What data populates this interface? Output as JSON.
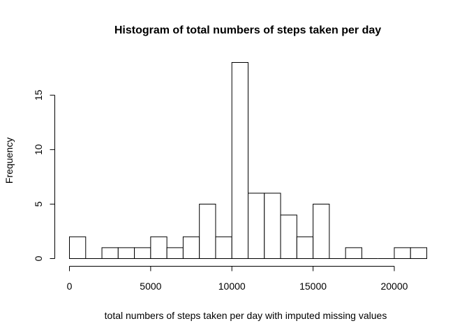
{
  "chart_data": {
    "type": "bar",
    "title": "Histogram of total numbers of steps taken per day",
    "xlabel": "total numbers of steps taken per day with imputed missing values",
    "ylabel": "Frequency",
    "bin_width": 1000,
    "bins_start": [
      0,
      1000,
      2000,
      3000,
      4000,
      5000,
      6000,
      7000,
      8000,
      9000,
      10000,
      11000,
      12000,
      13000,
      14000,
      15000,
      16000,
      17000,
      18000,
      19000,
      20000,
      21000
    ],
    "values": [
      2,
      0,
      1,
      1,
      1,
      2,
      1,
      2,
      5,
      2,
      18,
      6,
      6,
      4,
      2,
      5,
      0,
      1,
      0,
      0,
      1,
      1
    ],
    "xlim": [
      0,
      22000
    ],
    "ylim": [
      0,
      18
    ],
    "x_ticks": [
      0,
      5000,
      10000,
      15000,
      20000
    ],
    "x_tick_labels": [
      "0",
      "5000",
      "10000",
      "15000",
      "20000"
    ],
    "y_ticks": [
      0,
      5,
      10,
      15
    ],
    "y_tick_labels": [
      "0",
      "5",
      "10",
      "15"
    ],
    "grid": false,
    "legend": "none"
  }
}
